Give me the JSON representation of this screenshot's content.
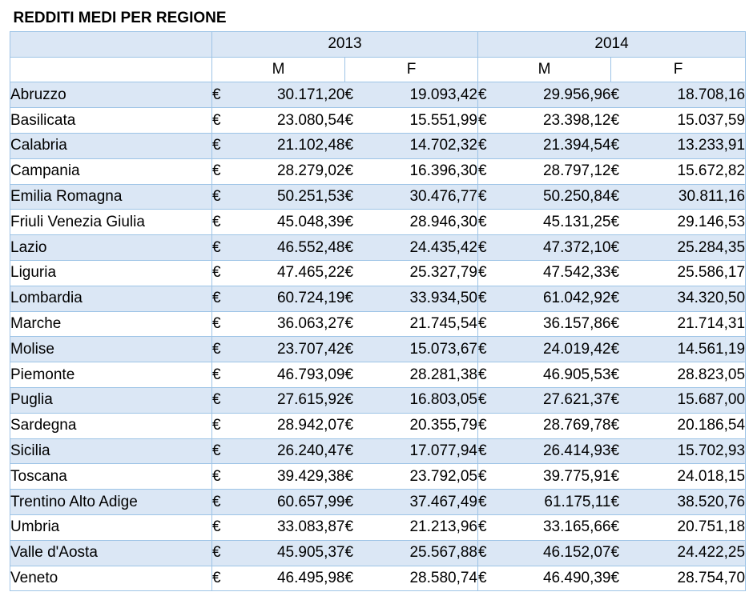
{
  "table": {
    "title": "REDDITI MEDI PER REGIONE",
    "years": [
      "2013",
      "2014"
    ],
    "sexes": [
      "M",
      "F"
    ],
    "currency_symbol": "€"
  },
  "chart_data": {
    "type": "table",
    "title": "REDDITI MEDI PER REGIONE",
    "column_groups": [
      {
        "year": "2013",
        "columns": [
          "M",
          "F"
        ]
      },
      {
        "year": "2014",
        "columns": [
          "M",
          "F"
        ]
      }
    ],
    "rows": [
      {
        "region": "Abruzzo",
        "values": [
          "30.171,20",
          "19.093,42",
          "29.956,96",
          "18.708,16"
        ]
      },
      {
        "region": "Basilicata",
        "values": [
          "23.080,54",
          "15.551,99",
          "23.398,12",
          "15.037,59"
        ]
      },
      {
        "region": "Calabria",
        "values": [
          "21.102,48",
          "14.702,32",
          "21.394,54",
          "13.233,91"
        ]
      },
      {
        "region": "Campania",
        "values": [
          "28.279,02",
          "16.396,30",
          "28.797,12",
          "15.672,82"
        ]
      },
      {
        "region": "Emilia Romagna",
        "values": [
          "50.251,53",
          "30.476,77",
          "50.250,84",
          "30.811,16"
        ]
      },
      {
        "region": "Friuli Venezia Giulia",
        "values": [
          "45.048,39",
          "28.946,30",
          "45.131,25",
          "29.146,53"
        ]
      },
      {
        "region": "Lazio",
        "values": [
          "46.552,48",
          "24.435,42",
          "47.372,10",
          "25.284,35"
        ]
      },
      {
        "region": "Liguria",
        "values": [
          "47.465,22",
          "25.327,79",
          "47.542,33",
          "25.586,17"
        ]
      },
      {
        "region": "Lombardia",
        "values": [
          "60.724,19",
          "33.934,50",
          "61.042,92",
          "34.320,50"
        ]
      },
      {
        "region": "Marche",
        "values": [
          "36.063,27",
          "21.745,54",
          "36.157,86",
          "21.714,31"
        ]
      },
      {
        "region": "Molise",
        "values": [
          "23.707,42",
          "15.073,67",
          "24.019,42",
          "14.561,19"
        ]
      },
      {
        "region": "Piemonte",
        "values": [
          "46.793,09",
          "28.281,38",
          "46.905,53",
          "28.823,05"
        ]
      },
      {
        "region": "Puglia",
        "values": [
          "27.615,92",
          "16.803,05",
          "27.621,37",
          "15.687,00"
        ]
      },
      {
        "region": "Sardegna",
        "values": [
          "28.942,07",
          "20.355,79",
          "28.769,78",
          "20.186,54"
        ]
      },
      {
        "region": "Sicilia",
        "values": [
          "26.240,47",
          "17.077,94",
          "26.414,93",
          "15.702,93"
        ]
      },
      {
        "region": "Toscana",
        "values": [
          "39.429,38",
          "23.792,05",
          "39.775,91",
          "24.018,15"
        ]
      },
      {
        "region": "Trentino Alto Adige",
        "values": [
          "60.657,99",
          "37.467,49",
          "61.175,11",
          "38.520,76"
        ]
      },
      {
        "region": "Umbria",
        "values": [
          "33.083,87",
          "21.213,96",
          "33.165,66",
          "20.751,18"
        ]
      },
      {
        "region": "Valle d'Aosta",
        "values": [
          "45.905,37",
          "25.567,88",
          "46.152,07",
          "24.422,25"
        ]
      },
      {
        "region": "Veneto",
        "values": [
          "46.495,98",
          "28.580,74",
          "46.490,39",
          "28.754,70"
        ]
      }
    ]
  }
}
